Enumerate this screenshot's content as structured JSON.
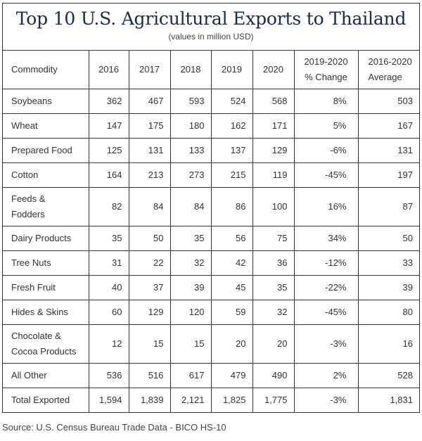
{
  "title": "Top 10 U.S. Agricultural Exports to Thailand",
  "subtitle": "(values in million USD)",
  "table": {
    "headers": [
      "Commodity",
      "2016",
      "2017",
      "2018",
      "2019",
      "2020",
      "2019-2020",
      "% Change",
      "2016-2020",
      "Average"
    ],
    "rows": [
      {
        "name": "Soybeans",
        "line2": "",
        "v": [
          "362",
          "467",
          "593",
          "524",
          "568"
        ],
        "pct": "8%",
        "avg": "503"
      },
      {
        "name": "Wheat",
        "line2": "",
        "v": [
          "147",
          "175",
          "180",
          "162",
          "171"
        ],
        "pct": "5%",
        "avg": "167"
      },
      {
        "name": "Prepared Food",
        "line2": "",
        "v": [
          "125",
          "131",
          "133",
          "137",
          "129"
        ],
        "pct": "-6%",
        "avg": "131"
      },
      {
        "name": "Cotton",
        "line2": "",
        "v": [
          "164",
          "213",
          "273",
          "215",
          "119"
        ],
        "pct": "-45%",
        "avg": "197"
      },
      {
        "name": "Feeds &",
        "line2": "Fodders",
        "v": [
          "82",
          "84",
          "84",
          "86",
          "100"
        ],
        "pct": "16%",
        "avg": "87"
      },
      {
        "name": "Dairy Products",
        "line2": "",
        "v": [
          "35",
          "50",
          "35",
          "56",
          "75"
        ],
        "pct": "34%",
        "avg": "50"
      },
      {
        "name": "Tree Nuts",
        "line2": "",
        "v": [
          "31",
          "22",
          "32",
          "42",
          "36"
        ],
        "pct": "-12%",
        "avg": "33"
      },
      {
        "name": "Fresh Fruit",
        "line2": "",
        "v": [
          "40",
          "37",
          "39",
          "45",
          "35"
        ],
        "pct": "-22%",
        "avg": "39"
      },
      {
        "name": "Hides & Skins",
        "line2": "",
        "v": [
          "60",
          "129",
          "120",
          "59",
          "32"
        ],
        "pct": "-45%",
        "avg": "80"
      },
      {
        "name": "Chocolate &",
        "line2": "Cocoa Products",
        "v": [
          "12",
          "15",
          "15",
          "20",
          "20"
        ],
        "pct": "-3%",
        "avg": "16"
      },
      {
        "name": "All Other",
        "line2": "",
        "v": [
          "536",
          "516",
          "617",
          "479",
          "490"
        ],
        "pct": "2%",
        "avg": "528"
      },
      {
        "name": "Total Exported",
        "line2": "",
        "v": [
          "1,594",
          "1,839",
          "2,121",
          "1,825",
          "1,775"
        ],
        "pct": "-3%",
        "avg": "1,831"
      }
    ]
  },
  "source": "Source: U.S. Census Bureau Trade Data - BICO HS-10",
  "colors": {
    "title": "#1b2a4a",
    "border": "#333333",
    "text": "#333333"
  }
}
